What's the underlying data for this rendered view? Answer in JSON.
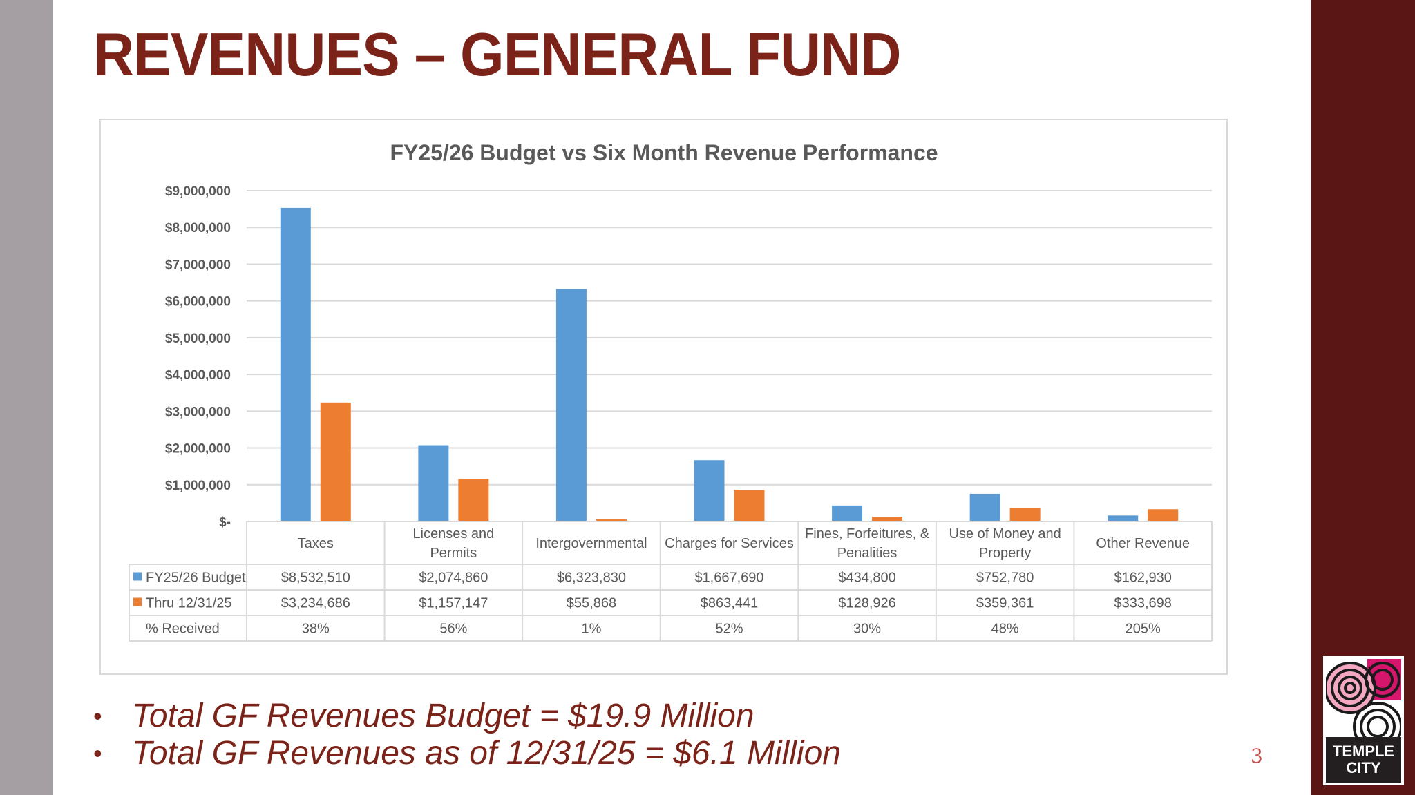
{
  "slide": {
    "title": "REVENUES – GENERAL FUND",
    "page_number": "3",
    "bullets": [
      "Total GF Revenues Budget = $19.9 Million",
      "Total GF Revenues as of 12/31/25 = $6.1 Million"
    ],
    "logo": {
      "line1": "TEMPLE",
      "line2": "CITY"
    }
  },
  "colors": {
    "title": "#7b2319",
    "budget": "#5b9bd5",
    "actual": "#ed7d31",
    "dark_band": "#5a1614",
    "gray_band": "#a59fa3"
  },
  "chart_data": {
    "type": "bar",
    "title": "FY25/26 Budget vs Six Month Revenue Performance",
    "xlabel": "",
    "ylabel": "",
    "ylim": [
      0,
      9000000
    ],
    "ytick_step": 1000000,
    "ytick_labels": [
      "$-",
      "$1,000,000",
      "$2,000,000",
      "$3,000,000",
      "$4,000,000",
      "$5,000,000",
      "$6,000,000",
      "$7,000,000",
      "$8,000,000",
      "$9,000,000"
    ],
    "grid": true,
    "legend": "data-table",
    "categories": [
      "Taxes",
      "Licenses and Permits",
      "Intergovernmental",
      "Charges for Services",
      "Fines, Forfeitures, & Penalities",
      "Use of Money and Property",
      "Other Revenue"
    ],
    "category_lines": [
      [
        "Taxes"
      ],
      [
        "Licenses and",
        "Permits"
      ],
      [
        "Intergovernmental"
      ],
      [
        "Charges for Services"
      ],
      [
        "Fines, Forfeitures, &",
        "Penalities"
      ],
      [
        "Use of Money and",
        "Property"
      ],
      [
        "Other Revenue"
      ]
    ],
    "series": [
      {
        "name": "FY25/26 Budget",
        "color": "#5b9bd5",
        "values": [
          8532510,
          2074860,
          6323830,
          1667690,
          434800,
          752780,
          162930
        ],
        "labels": [
          "$8,532,510",
          "$2,074,860",
          "$6,323,830",
          "$1,667,690",
          "$434,800",
          "$752,780",
          "$162,930"
        ]
      },
      {
        "name": "Thru 12/31/25",
        "color": "#ed7d31",
        "values": [
          3234686,
          1157147,
          55868,
          863441,
          128926,
          359361,
          333698
        ],
        "labels": [
          "$3,234,686",
          "$1,157,147",
          "$55,868",
          "$863,441",
          "$128,926",
          "$359,361",
          "$333,698"
        ]
      }
    ],
    "table_rows": [
      {
        "name": "% Received",
        "values": [
          "38%",
          "56%",
          "1%",
          "52%",
          "30%",
          "48%",
          "205%"
        ]
      }
    ]
  }
}
